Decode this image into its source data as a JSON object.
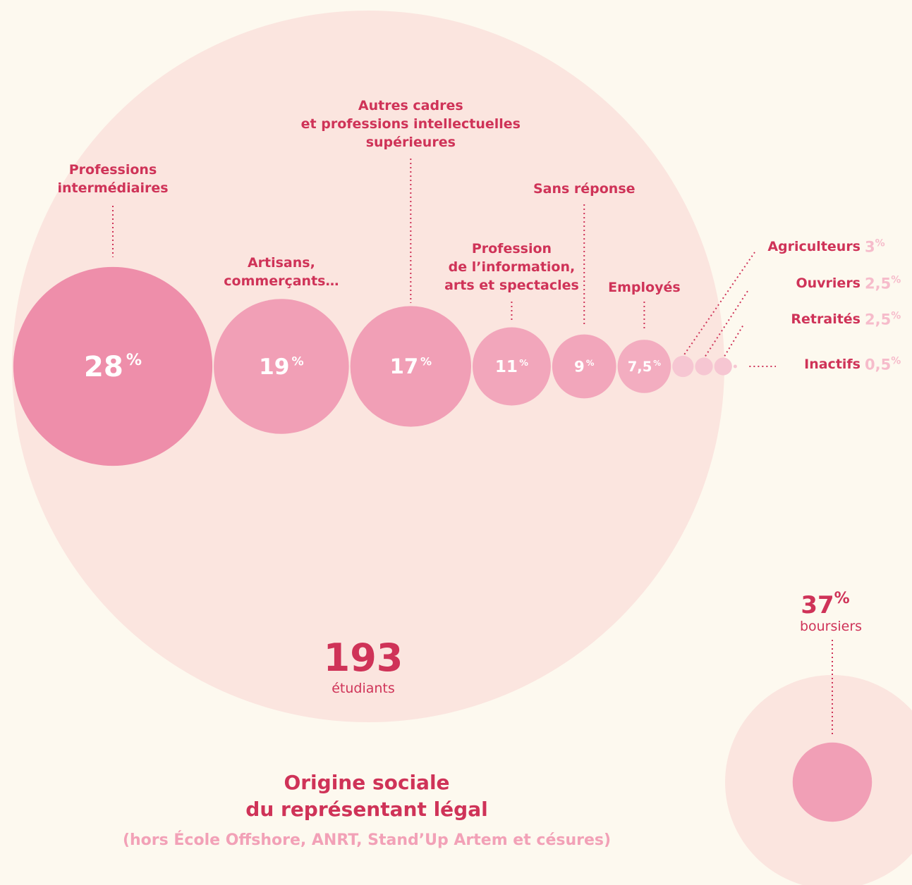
{
  "chart_data": {
    "type": "bubble",
    "title": "Origine sociale\ndu représentant légal",
    "subtitle": "(hors École Offshore, ANRT, Stand’Up Artem et césures)",
    "unit": "%",
    "categories": [
      "Professions\nintermédiaires",
      "Artisans,\ncommerçants…",
      "Autres cadres\net professions intellectuelles\nsupérieures",
      "Profession\nde l’information,\narts et spectacles",
      "Sans réponse",
      "Employés",
      "Agriculteurs",
      "Ouvriers",
      "Retraités",
      "Inactifs"
    ],
    "values": [
      28,
      19,
      17,
      11,
      9,
      7.5,
      3,
      2.5,
      2.5,
      0.5
    ],
    "value_labels": [
      "28",
      "19",
      "17",
      "11",
      "9",
      "7,5",
      "3",
      "2,5",
      "2,5",
      "0,5"
    ],
    "colors": [
      "#ee8eaa",
      "#f19fb6",
      "#f19fb6",
      "#f2a6bb",
      "#f2a6bb",
      "#f3adc0",
      "#f6c6d2",
      "#f6c6d2",
      "#f6c6d2",
      "#f6c6d2"
    ],
    "total": {
      "value": 193,
      "label": "étudiants"
    },
    "boursiers": {
      "value": 37,
      "label": "boursiers"
    }
  }
}
